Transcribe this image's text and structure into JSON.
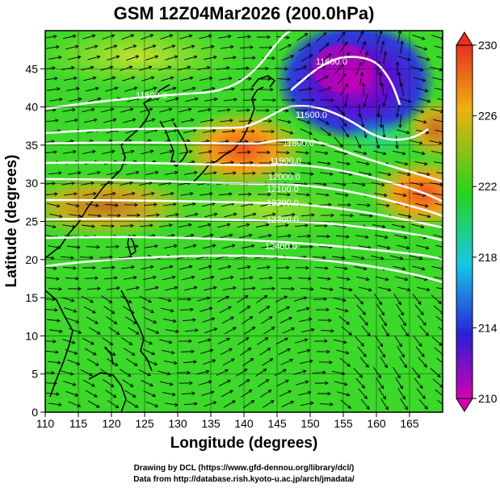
{
  "title": "GSM 12Z04Mar2026 (200.0hPa)",
  "xlabel": "Longitude (degrees)",
  "ylabel": "Latitude  (degrees)",
  "x_ticks": [
    "110",
    "115",
    "120",
    "125",
    "130",
    "135",
    "140",
    "145",
    "150",
    "155",
    "160",
    "165"
  ],
  "y_ticks": [
    "0",
    "5",
    "10",
    "15",
    "20",
    "25",
    "30",
    "35",
    "40",
    "45"
  ],
  "x_range": [
    110,
    170
  ],
  "y_range": [
    0,
    50
  ],
  "colorbar": {
    "ticks": [
      "230",
      "226",
      "222",
      "218",
      "214",
      "210"
    ],
    "range": [
      210,
      230
    ],
    "colors": [
      "#d400b0",
      "#2a1fd6",
      "#17c8e8",
      "#26d41c",
      "#f0b010",
      "#e8301e"
    ]
  },
  "contour_labels": [
    "11600.0",
    "11500.0",
    "11500.0",
    "11800.0",
    "11900.0",
    "12000.0",
    "12100.0",
    "12200.0",
    "12300.0",
    "12400.0"
  ],
  "credits": {
    "line1": "Drawing by DCL (https://www.gfd-dennou.org/library/dcl/)",
    "line2": "Data from http://database.rish.kyoto-u.ac.jp/arch/jmadata/"
  },
  "colors": {
    "contour": "#ffffff",
    "coast": "#000000",
    "grid": "#000000"
  }
}
